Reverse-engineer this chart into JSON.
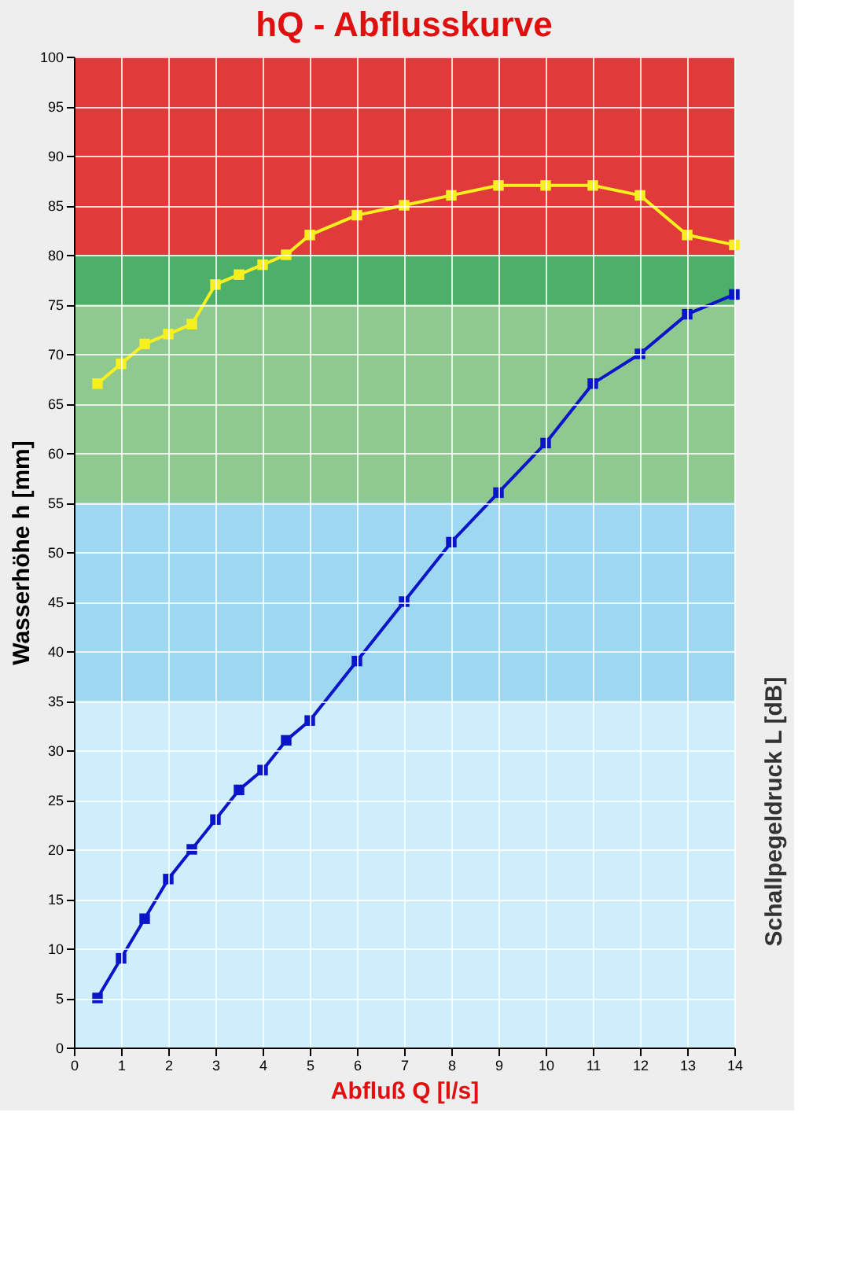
{
  "chart_data": {
    "type": "line",
    "title": "hQ - Abflusskurve",
    "xlabel": "Abfluß Q [l/s]",
    "ylabel": "Wasserhöhe h [mm]",
    "y2label": "Schallpegeldruck L [dB]",
    "x": [
      0.5,
      1,
      1.5,
      2,
      2.5,
      3,
      3.5,
      4,
      4.5,
      5,
      6,
      7,
      8,
      9,
      10,
      11,
      12,
      13,
      14
    ],
    "series": [
      {
        "color": "#0a14c8",
        "values": [
          5,
          9,
          13,
          17,
          20,
          23,
          26,
          28,
          31,
          33,
          39,
          45,
          51,
          56,
          61,
          67,
          70,
          74,
          76
        ]
      },
      {
        "color": "#f5f01e",
        "values": [
          67,
          69,
          71,
          72,
          73,
          77,
          78,
          79,
          80,
          82,
          84,
          85,
          86,
          87,
          87,
          87,
          86,
          82,
          81
        ]
      }
    ],
    "xlim": [
      0,
      14
    ],
    "xticks": [
      0,
      1,
      2,
      3,
      4,
      5,
      6,
      7,
      8,
      9,
      10,
      11,
      12,
      13,
      14
    ],
    "ylim": [
      0,
      100
    ],
    "yticks": [
      0,
      5,
      10,
      15,
      20,
      25,
      30,
      35,
      40,
      45,
      50,
      55,
      60,
      65,
      70,
      75,
      80,
      85,
      90,
      95,
      100
    ],
    "bands": [
      {
        "axis": "y",
        "from": 0,
        "to": 35,
        "color": "#cdeefa"
      },
      {
        "axis": "y",
        "from": 35,
        "to": 55,
        "color": "#9dd8f0"
      },
      {
        "axis": "y",
        "from": 55,
        "to": 75,
        "color": "#8fc98f"
      },
      {
        "axis": "y",
        "from": 75,
        "to": 80,
        "color": "#4caf6a"
      },
      {
        "axis": "y",
        "from": 80,
        "to": 100,
        "color": "#e03a3a"
      }
    ],
    "grid": true,
    "marker": "square"
  }
}
